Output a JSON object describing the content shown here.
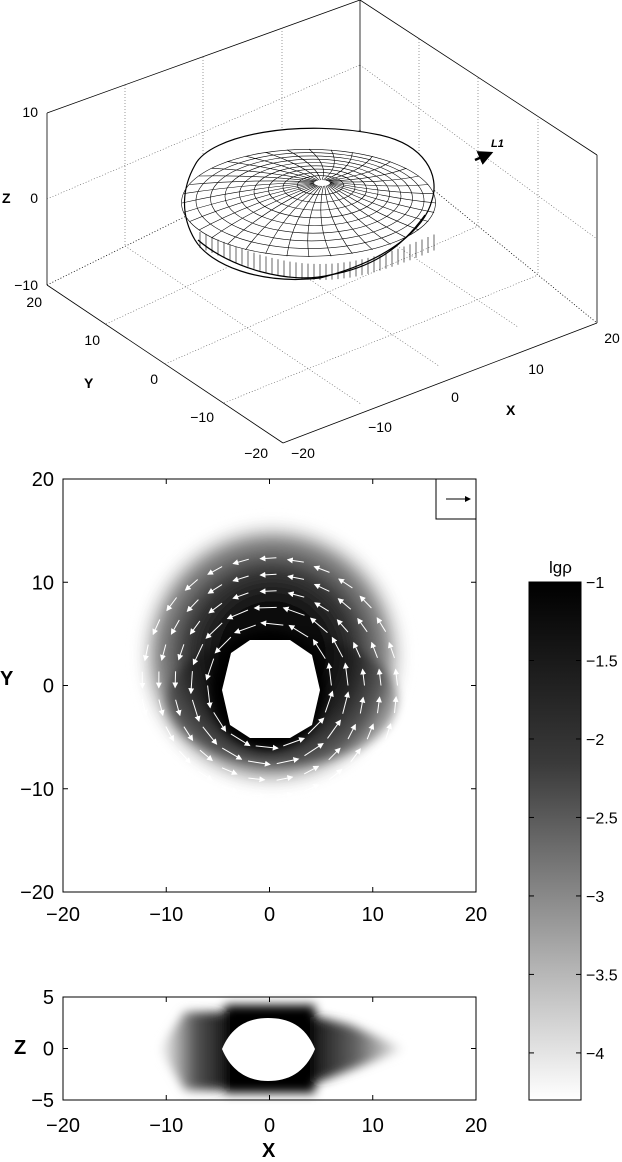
{
  "chart_data": [
    {
      "type": "surface3d",
      "zlabel": "Z",
      "ylabel": "Y",
      "xlabel": "X",
      "annotation": "L1",
      "zticks": [
        "10",
        "0",
        "−10"
      ],
      "yticks": [
        "20",
        "10",
        "0",
        "−10",
        "−20"
      ],
      "xticks": [
        "−20",
        "−10",
        "0",
        "10",
        "20"
      ],
      "xlim": [
        -20,
        20
      ],
      "ylim": [
        -20,
        20
      ],
      "zlim": [
        -10,
        10
      ],
      "grid": true
    },
    {
      "type": "heatmap",
      "panel": "xy-plane density with velocity vectors",
      "ylabel": "Y",
      "xticks": [
        "−20",
        "−10",
        "0",
        "10",
        "20"
      ],
      "yticks": [
        "20",
        "10",
        "0",
        "−10",
        "−20"
      ],
      "xlim": [
        -20,
        20
      ],
      "ylim": [
        -20,
        20
      ],
      "inner_hole_radius": 4.5,
      "disk_outer_radius": 13,
      "flow": "counter-clockwise",
      "reference_arrow": "top-right"
    },
    {
      "type": "heatmap",
      "panel": "xz-plane density",
      "xlabel": "X",
      "ylabel": "Z",
      "xticks": [
        "−20",
        "−10",
        "0",
        "10",
        "20"
      ],
      "yticks": [
        "5",
        "0",
        "−5"
      ],
      "xlim": [
        -20,
        20
      ],
      "ylim": [
        -5,
        5
      ]
    },
    {
      "type": "colorbar",
      "label": "lgρ",
      "ticks": [
        "−1",
        "−1.5",
        "−2",
        "−2.5",
        "−3",
        "−3.5",
        "−4"
      ],
      "tick_values": [
        -1,
        -1.5,
        -2,
        -2.5,
        -3,
        -3.5,
        -4
      ],
      "range": [
        -4.3,
        -1
      ],
      "colormap": "gray-reversed"
    }
  ]
}
